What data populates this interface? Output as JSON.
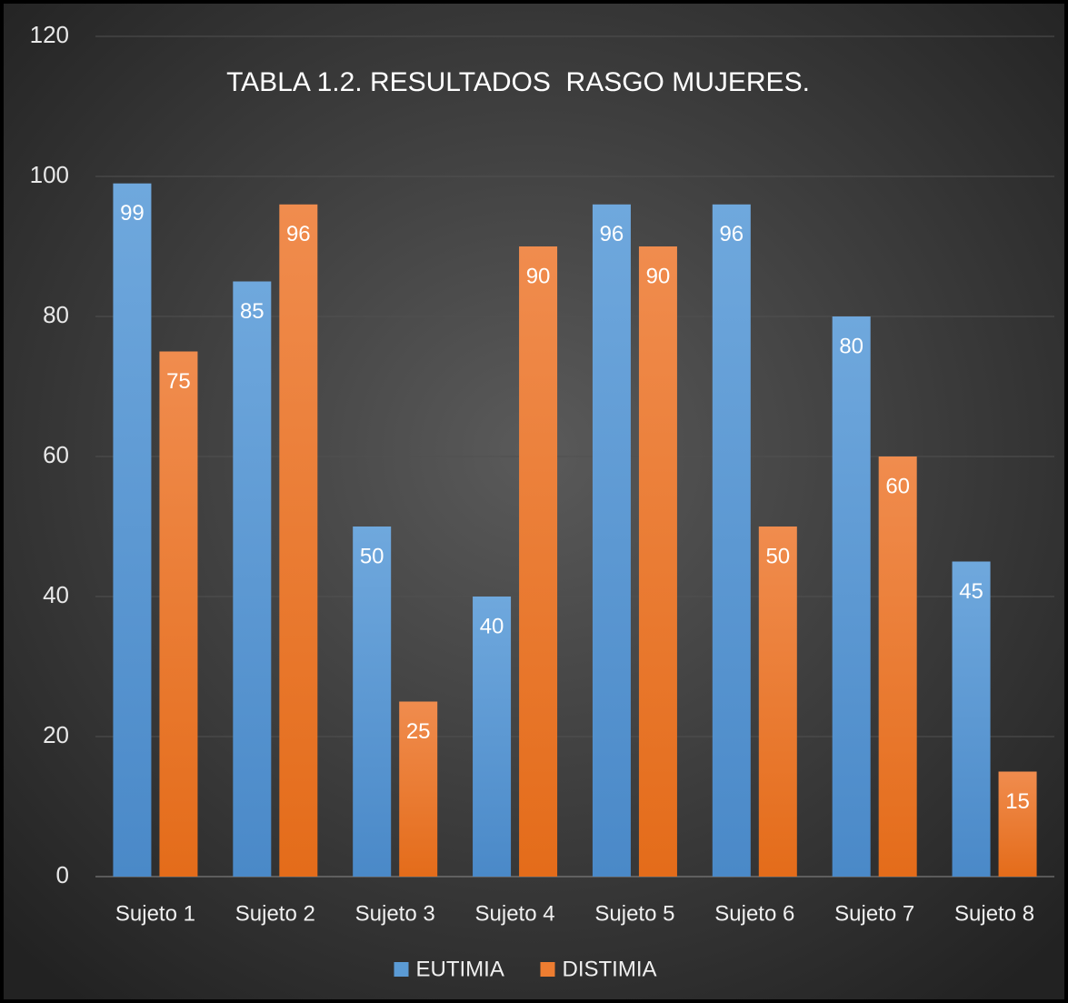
{
  "chart_data": {
    "type": "bar",
    "title": "TABLA 1.2. RESULTADOS  RASGO MUJERES.",
    "categories": [
      "Sujeto 1",
      "Sujeto 2",
      "Sujeto 3",
      "Sujeto 4",
      "Sujeto 5",
      "Sujeto 6",
      "Sujeto 7",
      "Sujeto 8"
    ],
    "series": [
      {
        "name": "EUTIMIA",
        "color": "#5b9bd5",
        "values": [
          99,
          85,
          50,
          40,
          96,
          96,
          80,
          45
        ]
      },
      {
        "name": "DISTIMIA",
        "color": "#ed7d31",
        "values": [
          75,
          96,
          25,
          90,
          90,
          50,
          60,
          15
        ]
      }
    ],
    "ylim": [
      0,
      120
    ],
    "yticks": [
      0,
      20,
      40,
      60,
      80,
      100,
      120
    ],
    "grid": true,
    "legend": "bottom"
  }
}
